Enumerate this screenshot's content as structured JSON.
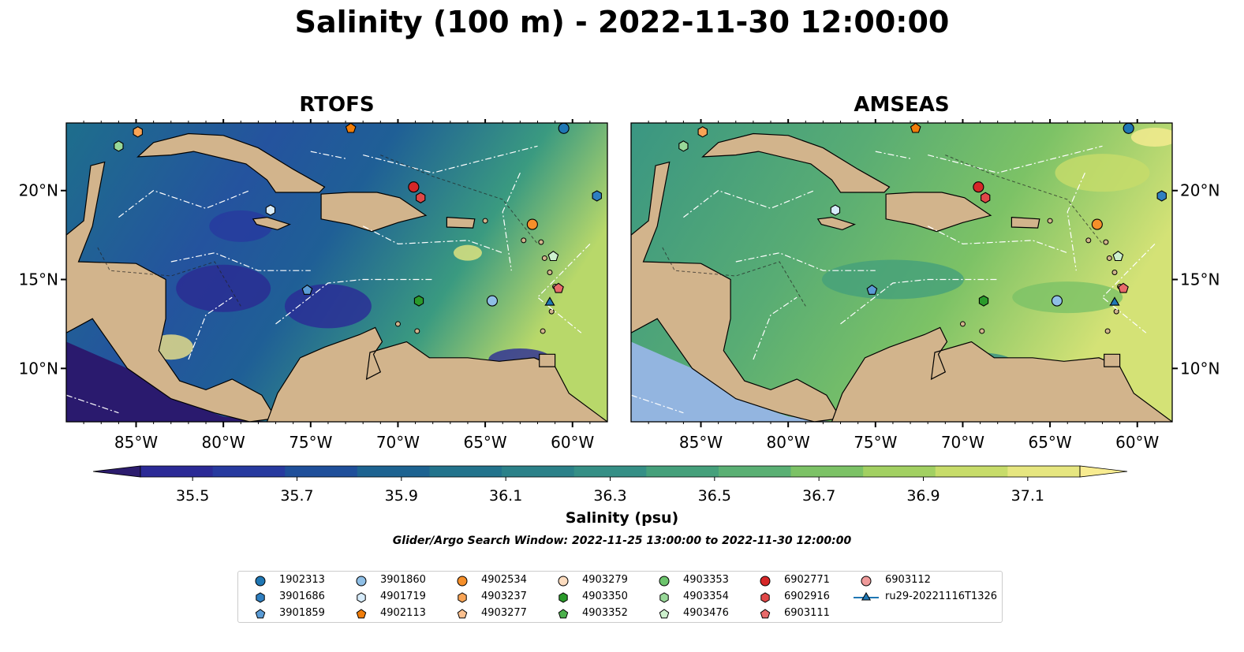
{
  "title": "Salinity (100 m) - 2022-11-30 12:00:00",
  "panels": [
    {
      "title": "RTOFS",
      "theme": "dark"
    },
    {
      "title": "AMSEAS",
      "theme": "light"
    }
  ],
  "map": {
    "lon_ticks": [
      "85°W",
      "80°W",
      "75°W",
      "70°W",
      "65°W",
      "60°W"
    ],
    "lat_ticks": [
      "20°N",
      "15°N",
      "10°N"
    ],
    "lon_values": [
      -85,
      -80,
      -75,
      -70,
      -65,
      -60
    ],
    "lat_values": [
      20,
      15,
      10
    ],
    "lon_range": [
      -89,
      -58
    ],
    "lat_range": [
      7,
      23.8
    ],
    "colors": {
      "land": "#d2b48c",
      "ocean_shelf": "#93b5e0",
      "deep_dark": "#2a1a6e",
      "border": "#000000",
      "eez": "#ffffff"
    }
  },
  "colorbar": {
    "label": "Salinity (psu)",
    "tick_labels": [
      "35.5",
      "35.7",
      "35.9",
      "36.1",
      "36.3",
      "36.5",
      "36.7",
      "36.9",
      "37.1"
    ],
    "tick_values": [
      35.5,
      35.7,
      35.9,
      36.1,
      36.3,
      36.5,
      36.7,
      36.9,
      37.1
    ],
    "min": 35.4,
    "max": 37.2,
    "colors": [
      "#2c1c6e",
      "#2b2a96",
      "#273a9f",
      "#1f4f9a",
      "#1d6391",
      "#22738c",
      "#2b8189",
      "#358f86",
      "#45a07b",
      "#5ab074",
      "#7cc266",
      "#a2d062",
      "#c7dc6a",
      "#e6e680",
      "#f8ec91"
    ]
  },
  "window_note": "Glider/Argo Search Window: 2022-11-25 13:00:00 to 2022-11-30 12:00:00",
  "legend": [
    {
      "label": "1902313",
      "marker": "circle",
      "color": "#1f77b4"
    },
    {
      "label": "3901686",
      "marker": "hexagon",
      "color": "#2f7fc0"
    },
    {
      "label": "3901859",
      "marker": "pentagon",
      "color": "#5a9bd5"
    },
    {
      "label": "3901860",
      "marker": "circle",
      "color": "#8fbfe6"
    },
    {
      "label": "4901719",
      "marker": "hexagon",
      "color": "#d6ebfa"
    },
    {
      "label": "4902113",
      "marker": "pentagon",
      "color": "#f07d0a"
    },
    {
      "label": "4902534",
      "marker": "circle",
      "color": "#f58f2a"
    },
    {
      "label": "4903237",
      "marker": "hexagon",
      "color": "#f9a455"
    },
    {
      "label": "4903277",
      "marker": "pentagon",
      "color": "#fbc08f"
    },
    {
      "label": "4903279",
      "marker": "circle",
      "color": "#fcdcbf"
    },
    {
      "label": "4903350",
      "marker": "hexagon",
      "color": "#2a9a2a"
    },
    {
      "label": "4903352",
      "marker": "pentagon",
      "color": "#4cb04c"
    },
    {
      "label": "4903353",
      "marker": "circle",
      "color": "#6cc46c"
    },
    {
      "label": "4903354",
      "marker": "hexagon",
      "color": "#98d898"
    },
    {
      "label": "4903476",
      "marker": "pentagon",
      "color": "#cdf0cd"
    },
    {
      "label": "6902771",
      "marker": "circle",
      "color": "#d62728"
    },
    {
      "label": "6902916",
      "marker": "hexagon",
      "color": "#e04848"
    },
    {
      "label": "6903111",
      "marker": "pentagon",
      "color": "#e86a6a"
    },
    {
      "label": "6903112",
      "marker": "circle",
      "color": "#ef9a9a"
    },
    {
      "label": "ru29-20221116T1326",
      "marker": "triangle-line",
      "color": "#1f77b4"
    }
  ],
  "stations": [
    {
      "id": "1902313",
      "lon": -60.5,
      "lat": 23.5
    },
    {
      "id": "3901686",
      "lon": -58.6,
      "lat": 19.7
    },
    {
      "id": "3901859",
      "lon": -75.2,
      "lat": 14.4
    },
    {
      "id": "3901860",
      "lon": -64.6,
      "lat": 13.8
    },
    {
      "id": "4901719",
      "lon": -77.3,
      "lat": 18.9
    },
    {
      "id": "4902113",
      "lon": -72.7,
      "lat": 23.5
    },
    {
      "id": "4902534",
      "lon": -62.3,
      "lat": 18.1
    },
    {
      "id": "4903237",
      "lon": -84.9,
      "lat": 23.3
    },
    {
      "id": "4903350",
      "lon": -68.8,
      "lat": 13.8
    },
    {
      "id": "4903354",
      "lon": -86.0,
      "lat": 22.5
    },
    {
      "id": "6902771",
      "lon": -69.1,
      "lat": 20.2
    },
    {
      "id": "6902916",
      "lon": -68.7,
      "lat": 19.6
    },
    {
      "id": "6903111",
      "lon": -60.8,
      "lat": 14.5
    },
    {
      "id": "4903476",
      "lon": -61.1,
      "lat": 16.3
    },
    {
      "id": "ru29-20221116T1326",
      "lon": -61.3,
      "lat": 13.7
    }
  ]
}
